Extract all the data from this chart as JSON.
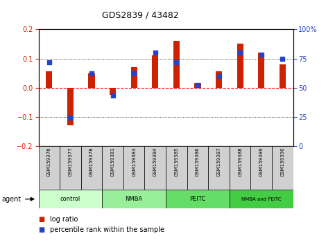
{
  "title": "GDS2839 / 43482",
  "samples": [
    "GSM159376",
    "GSM159377",
    "GSM159378",
    "GSM159381",
    "GSM159383",
    "GSM159384",
    "GSM159385",
    "GSM159386",
    "GSM159387",
    "GSM159388",
    "GSM159389",
    "GSM159390"
  ],
  "log_ratio": [
    0.055,
    -0.13,
    0.05,
    -0.025,
    0.07,
    0.11,
    0.16,
    0.015,
    0.055,
    0.15,
    0.12,
    0.08
  ],
  "percentile_rank": [
    72,
    24,
    62,
    43,
    62,
    80,
    72,
    52,
    60,
    80,
    78,
    75
  ],
  "groups": [
    {
      "label": "control",
      "start": 0,
      "end": 3,
      "color": "#ccffcc"
    },
    {
      "label": "NMBA",
      "start": 3,
      "end": 6,
      "color": "#99ee99"
    },
    {
      "label": "PEITC",
      "start": 6,
      "end": 9,
      "color": "#66dd66"
    },
    {
      "label": "NMBA and PEITC",
      "start": 9,
      "end": 12,
      "color": "#44cc44"
    }
  ],
  "ylim": [
    -0.2,
    0.2
  ],
  "yticks_left": [
    -0.2,
    -0.1,
    0.0,
    0.1,
    0.2
  ],
  "yticks_right_labels": [
    "0",
    "25",
    "50",
    "75",
    "100%"
  ],
  "bar_color": "#cc2200",
  "dot_color": "#2244cc",
  "agent_label": "agent",
  "legend_bar": "log ratio",
  "legend_dot": "percentile rank within the sample",
  "plot_bg": "#ffffff",
  "bar_width": 0.3,
  "dot_size": 20
}
